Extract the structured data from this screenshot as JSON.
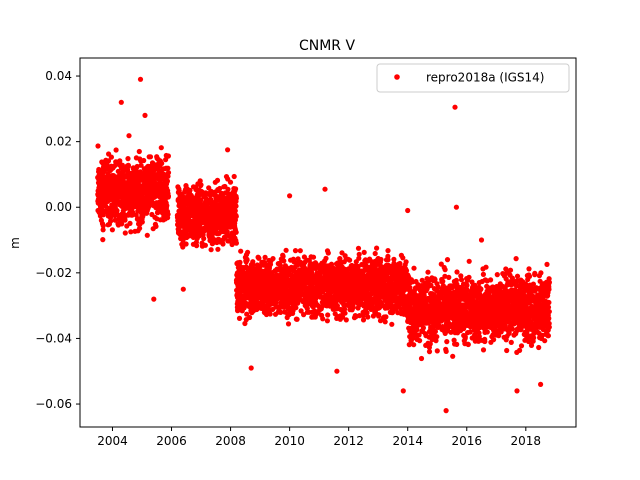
{
  "chart_data": {
    "type": "scatter",
    "title": "CNMR V",
    "xlabel": "",
    "ylabel": "m",
    "xlim": [
      2002.9,
      2019.7
    ],
    "ylim": [
      -0.067,
      0.0455
    ],
    "x_ticks": [
      2004,
      2006,
      2008,
      2010,
      2012,
      2014,
      2016,
      2018
    ],
    "y_ticks": [
      0.04,
      0.02,
      0.0,
      -0.02,
      -0.04,
      -0.06
    ],
    "y_tick_labels": [
      "0.04",
      "0.02",
      "0.00",
      "−0.02",
      "−0.04",
      "−0.06"
    ],
    "grid": false,
    "legend": {
      "position": "top-right",
      "entries": [
        "repro2018a (IGS14)"
      ]
    },
    "series": [
      {
        "name": "repro2018a (IGS14)",
        "color": "#ff0000",
        "marker": "circle",
        "trend_segments": [
          {
            "x_range": [
              2003.5,
              2005.9
            ],
            "mean": 0.005,
            "spread": 0.009
          },
          {
            "x_range": [
              2006.2,
              2008.2
            ],
            "mean": -0.002,
            "spread": 0.008
          },
          {
            "x_range": [
              2008.2,
              2014.0
            ],
            "mean": -0.024,
            "spread": 0.008
          },
          {
            "x_range": [
              2014.0,
              2018.8
            ],
            "mean": -0.031,
            "spread": 0.009
          }
        ],
        "gaps": [
          [
            2005.9,
            2006.2
          ]
        ],
        "outliers": [
          {
            "x": 2004.95,
            "y": 0.039
          },
          {
            "x": 2004.3,
            "y": 0.032
          },
          {
            "x": 2005.1,
            "y": 0.028
          },
          {
            "x": 2015.6,
            "y": 0.0305
          },
          {
            "x": 2015.65,
            "y": 0.0
          },
          {
            "x": 2015.3,
            "y": -0.062
          },
          {
            "x": 2013.85,
            "y": -0.056
          },
          {
            "x": 2017.7,
            "y": -0.056
          },
          {
            "x": 2005.4,
            "y": -0.028
          },
          {
            "x": 2006.4,
            "y": -0.025
          },
          {
            "x": 2007.9,
            "y": 0.0175
          },
          {
            "x": 2008.7,
            "y": -0.049
          },
          {
            "x": 2010.0,
            "y": 0.0035
          },
          {
            "x": 2011.2,
            "y": 0.0055
          },
          {
            "x": 2011.6,
            "y": -0.05
          },
          {
            "x": 2014.0,
            "y": -0.001
          },
          {
            "x": 2016.5,
            "y": -0.01
          },
          {
            "x": 2018.5,
            "y": -0.054
          }
        ]
      }
    ]
  }
}
